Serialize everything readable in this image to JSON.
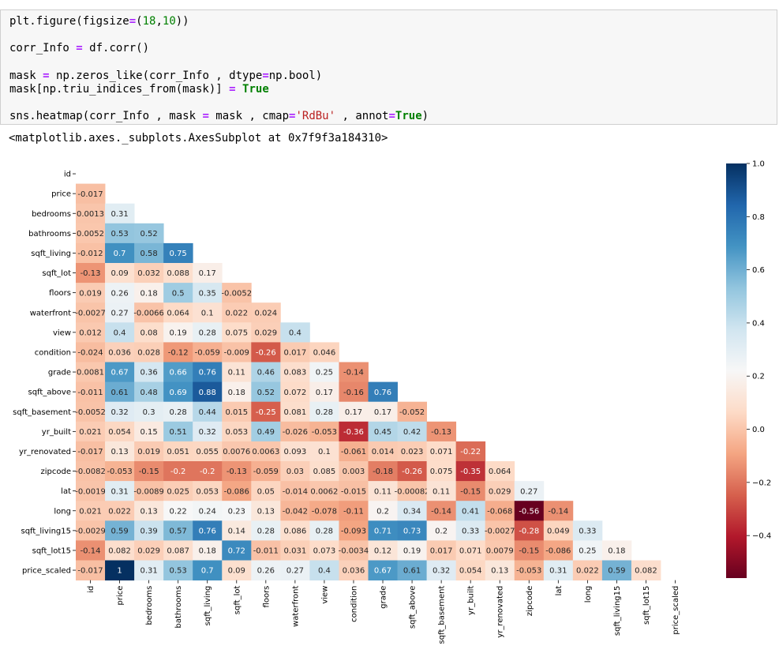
{
  "code": {
    "lines": [
      [
        [
          "plt.figure(figsize",
          ""
        ],
        [
          "=",
          "op"
        ],
        [
          "(",
          ""
        ],
        [
          "18",
          "num"
        ],
        [
          ",",
          ""
        ],
        [
          "10",
          "num"
        ],
        [
          "))",
          ""
        ]
      ],
      [
        [
          "corr_Info ",
          ""
        ],
        [
          "=",
          "op"
        ],
        [
          " df.corr()",
          ""
        ]
      ],
      [
        [
          "mask ",
          ""
        ],
        [
          "=",
          "op"
        ],
        [
          " np.zeros_like(corr_Info , dtype",
          ""
        ],
        [
          "=",
          "op"
        ],
        [
          "np.bool)",
          ""
        ]
      ],
      [
        [
          "mask[np.triu_indices_from(mask)] ",
          ""
        ],
        [
          "=",
          "op"
        ],
        [
          " ",
          ""
        ],
        [
          "True",
          "kw"
        ]
      ],
      [
        [
          "sns.heatmap(corr_Info , mask ",
          ""
        ],
        [
          "=",
          "op"
        ],
        [
          " mask , cmap",
          ""
        ],
        [
          "=",
          "op"
        ],
        [
          "'RdBu'",
          "str"
        ],
        [
          " , annot",
          ""
        ],
        [
          "=",
          "op"
        ],
        [
          "True",
          "kw"
        ],
        [
          ")",
          ""
        ]
      ]
    ]
  },
  "output": {
    "text": "<matplotlib.axes._subplots.AxesSubplot at 0x7f9f3a184310>"
  },
  "chart_data": {
    "type": "heatmap",
    "labels": [
      "id",
      "price",
      "bedrooms",
      "bathrooms",
      "sqft_living",
      "sqft_lot",
      "floors",
      "waterfront",
      "view",
      "condition",
      "grade",
      "sqft_above",
      "sqft_basement",
      "yr_built",
      "yr_renovated",
      "zipcode",
      "lat",
      "long",
      "sqft_living15",
      "sqft_lot15",
      "price_scaled"
    ],
    "lower_triangle_annotations": [
      [],
      [
        "-0.017"
      ],
      [
        "0.0013",
        "0.31"
      ],
      [
        "0.0052",
        "0.53",
        "0.52"
      ],
      [
        "-0.012",
        "0.7",
        "0.58",
        "0.75"
      ],
      [
        "-0.13",
        "0.09",
        "0.032",
        "0.088",
        "0.17"
      ],
      [
        "0.019",
        "0.26",
        "0.18",
        "0.5",
        "0.35",
        "-0.0052"
      ],
      [
        "-0.0027",
        "0.27",
        "-0.0066",
        "0.064",
        "0.1",
        "0.022",
        "0.024"
      ],
      [
        "0.012",
        "0.4",
        "0.08",
        "0.19",
        "0.28",
        "0.075",
        "0.029",
        "0.4"
      ],
      [
        "-0.024",
        "0.036",
        "0.028",
        "-0.12",
        "-0.059",
        "-0.009",
        "-0.26",
        "0.017",
        "0.046"
      ],
      [
        "0.0081",
        "0.67",
        "0.36",
        "0.66",
        "0.76",
        "0.11",
        "0.46",
        "0.083",
        "0.25",
        "-0.14"
      ],
      [
        "-0.011",
        "0.61",
        "0.48",
        "0.69",
        "0.88",
        "0.18",
        "0.52",
        "0.072",
        "0.17",
        "-0.16",
        "0.76"
      ],
      [
        "-0.0052",
        "0.32",
        "0.3",
        "0.28",
        "0.44",
        "0.015",
        "-0.25",
        "0.081",
        "0.28",
        "0.17",
        "0.17",
        "-0.052"
      ],
      [
        "0.021",
        "0.054",
        "0.15",
        "0.51",
        "0.32",
        "0.053",
        "0.49",
        "-0.026",
        "-0.053",
        "-0.36",
        "0.45",
        "0.42",
        "-0.13"
      ],
      [
        "-0.017",
        "0.13",
        "0.019",
        "0.051",
        "0.055",
        "0.0076",
        "0.0063",
        "0.093",
        "0.1",
        "-0.061",
        "0.014",
        "0.023",
        "0.071",
        "-0.22"
      ],
      [
        "-0.0082",
        "-0.053",
        "-0.15",
        "-0.2",
        "-0.2",
        "-0.13",
        "-0.059",
        "0.03",
        "0.085",
        "0.003",
        "-0.18",
        "-0.26",
        "0.075",
        "-0.35",
        "0.064"
      ],
      [
        "-0.0019",
        "0.31",
        "-0.0089",
        "0.025",
        "0.053",
        "-0.086",
        "0.05",
        "-0.014",
        "0.0062",
        "-0.015",
        "0.11",
        "-0.00082",
        "0.11",
        "-0.15",
        "0.029",
        "0.27"
      ],
      [
        "0.021",
        "0.022",
        "0.13",
        "0.22",
        "0.24",
        "0.23",
        "0.13",
        "-0.042",
        "-0.078",
        "-0.11",
        "0.2",
        "0.34",
        "-0.14",
        "0.41",
        "-0.068",
        "-0.56",
        "-0.14"
      ],
      [
        "-0.0029",
        "0.59",
        "0.39",
        "0.57",
        "0.76",
        "0.14",
        "0.28",
        "0.086",
        "0.28",
        "-0.093",
        "0.71",
        "0.73",
        "0.2",
        "0.33",
        "-0.0027",
        "-0.28",
        "0.049",
        "0.33"
      ],
      [
        "-0.14",
        "0.082",
        "0.029",
        "0.087",
        "0.18",
        "0.72",
        "-0.011",
        "0.031",
        "0.073",
        "-0.0034",
        "0.12",
        "0.19",
        "0.017",
        "0.071",
        "0.0079",
        "-0.15",
        "-0.086",
        "0.25",
        "0.18"
      ],
      [
        "-0.017",
        "1",
        "0.31",
        "0.53",
        "0.7",
        "0.09",
        "0.26",
        "0.27",
        "0.4",
        "0.036",
        "0.67",
        "0.61",
        "0.32",
        "0.054",
        "0.13",
        "-0.053",
        "0.31",
        "0.022",
        "0.59",
        "0.082"
      ]
    ],
    "mask": "upper triangle including diagonal",
    "colormap": "RdBu",
    "vmin": -0.56,
    "vmax": 1.0,
    "colorbar_ticks": [
      "1.0",
      "0.8",
      "0.6",
      "0.4",
      "0.2",
      "0.0",
      "−0.2",
      "−0.4"
    ],
    "colorbar_tick_values": [
      1.0,
      0.8,
      0.6,
      0.4,
      0.2,
      0.0,
      -0.2,
      -0.4
    ]
  }
}
